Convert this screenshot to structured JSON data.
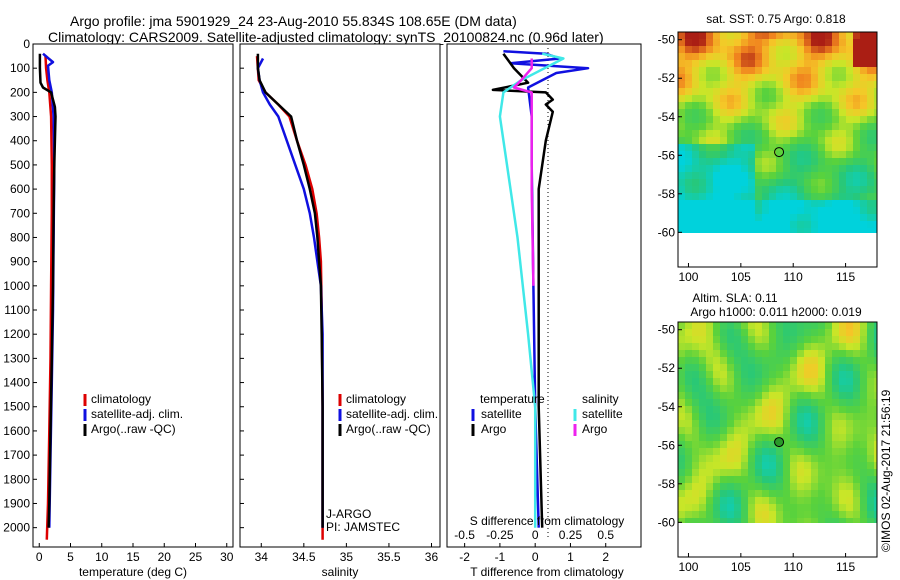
{
  "header": {
    "line1": "Argo profile: jma 5901929_24 23-Aug-2010 55.834S 108.65E (DM data)",
    "line2": "Climatology: CARS2009. Satellite-adjusted climatology: synTS_20100824.nc (0.96d later)"
  },
  "side_text": "©IMOS 02-Aug-2017 21:56:19",
  "colors": {
    "red": "#dd0000",
    "blue": "#1010e0",
    "black": "#000000",
    "cyan": "#40e8e8",
    "magenta": "#ee22ee"
  },
  "chart_data": [
    {
      "type": "line",
      "panel": "temperature",
      "xlabel": "temperature (deg C)",
      "ylabel": "",
      "xlim": [
        -1,
        31
      ],
      "ylim": [
        2080,
        0
      ],
      "xticks": [
        0,
        5,
        10,
        15,
        20,
        25,
        30
      ],
      "yticks": [
        0,
        100,
        200,
        300,
        400,
        500,
        600,
        700,
        800,
        900,
        1000,
        1100,
        1200,
        1300,
        1400,
        1500,
        1600,
        1700,
        1800,
        1900,
        2000
      ],
      "legend": [
        "climatology",
        "satellite-adj. clim.",
        "Argo(..raw -QC)"
      ],
      "series": [
        {
          "name": "climatology",
          "color": "#dd0000",
          "points": [
            [
              1.0,
              50
            ],
            [
              1.1,
              100
            ],
            [
              1.3,
              150
            ],
            [
              1.6,
              200
            ],
            [
              1.9,
              300
            ],
            [
              2.0,
              500
            ],
            [
              2.0,
              700
            ],
            [
              1.9,
              1000
            ],
            [
              1.8,
              1300
            ],
            [
              1.6,
              1600
            ],
            [
              1.4,
              1900
            ],
            [
              1.2,
              2050
            ]
          ]
        },
        {
          "name": "satellite-adj. clim.",
          "color": "#1010e0",
          "points": [
            [
              0.6,
              40
            ],
            [
              1.5,
              60
            ],
            [
              2.2,
              75
            ],
            [
              1.4,
              90
            ],
            [
              1.6,
              150
            ],
            [
              2.0,
              200
            ],
            [
              2.3,
              300
            ],
            [
              2.4,
              500
            ],
            [
              2.3,
              800
            ],
            [
              2.2,
              1100
            ],
            [
              2.0,
              1400
            ],
            [
              1.8,
              1700
            ],
            [
              1.6,
              2000
            ]
          ]
        },
        {
          "name": "Argo(..raw -QC)",
          "color": "#000000",
          "points": [
            [
              0.1,
              40
            ],
            [
              0.1,
              100
            ],
            [
              0.2,
              160
            ],
            [
              0.6,
              180
            ],
            [
              1.9,
              200
            ],
            [
              2.5,
              260
            ],
            [
              2.6,
              300
            ],
            [
              2.4,
              500
            ],
            [
              2.3,
              700
            ],
            [
              2.2,
              1000
            ],
            [
              2.0,
              1300
            ],
            [
              1.8,
              1600
            ],
            [
              1.6,
              1900
            ],
            [
              1.5,
              2000
            ]
          ]
        }
      ]
    },
    {
      "type": "line",
      "panel": "salinity",
      "xlabel": "salinity",
      "xlim": [
        33.75,
        36.1
      ],
      "ylim": [
        2080,
        0
      ],
      "xticks": [
        34,
        34.5,
        35,
        35.5,
        36
      ],
      "yticks": [
        0,
        100,
        200,
        300,
        400,
        500,
        600,
        700,
        800,
        900,
        1000,
        1100,
        1200,
        1300,
        1400,
        1500,
        1600,
        1700,
        1800,
        1900,
        2000
      ],
      "legend": [
        "climatology",
        "satellite-adj. clim.",
        "Argo(..raw -QC)"
      ],
      "annotations": [
        "J-ARGO",
        "PI: JAMSTEC"
      ],
      "series": [
        {
          "name": "climatology",
          "color": "#dd0000",
          "points": [
            [
              33.95,
              50
            ],
            [
              33.97,
              150
            ],
            [
              34.05,
              200
            ],
            [
              34.2,
              250
            ],
            [
              34.33,
              300
            ],
            [
              34.42,
              400
            ],
            [
              34.52,
              500
            ],
            [
              34.6,
              600
            ],
            [
              34.65,
              700
            ],
            [
              34.68,
              800
            ],
            [
              34.7,
              900
            ],
            [
              34.71,
              1100
            ],
            [
              34.72,
              1500
            ],
            [
              34.72,
              2050
            ]
          ]
        },
        {
          "name": "satellite-adj. clim.",
          "color": "#1010e0",
          "points": [
            [
              34.02,
              60
            ],
            [
              33.96,
              100
            ],
            [
              33.98,
              150
            ],
            [
              34.02,
              200
            ],
            [
              34.1,
              250
            ],
            [
              34.2,
              300
            ],
            [
              34.3,
              400
            ],
            [
              34.4,
              500
            ],
            [
              34.5,
              600
            ],
            [
              34.57,
              700
            ],
            [
              34.62,
              800
            ],
            [
              34.66,
              900
            ],
            [
              34.7,
              1000
            ],
            [
              34.72,
              1200
            ],
            [
              34.72,
              1500
            ],
            [
              34.72,
              1800
            ],
            [
              34.72,
              2000
            ]
          ]
        },
        {
          "name": "Argo(..raw -QC)",
          "color": "#000000",
          "points": [
            [
              33.96,
              40
            ],
            [
              33.96,
              100
            ],
            [
              33.98,
              150
            ],
            [
              34.05,
              200
            ],
            [
              34.2,
              250
            ],
            [
              34.35,
              300
            ],
            [
              34.42,
              400
            ],
            [
              34.5,
              500
            ],
            [
              34.57,
              600
            ],
            [
              34.63,
              700
            ],
            [
              34.66,
              800
            ],
            [
              34.68,
              900
            ],
            [
              34.7,
              1000
            ],
            [
              34.71,
              1200
            ],
            [
              34.72,
              1500
            ],
            [
              34.72,
              1800
            ],
            [
              34.72,
              2000
            ]
          ]
        }
      ]
    },
    {
      "type": "line",
      "panel": "difference",
      "xlabel": "T difference from climatology",
      "xlabel_top": "S difference from climatology",
      "xlim": [
        -2.5,
        3.0
      ],
      "ylim": [
        2080,
        0
      ],
      "xticks": [
        -2,
        -1,
        0,
        1,
        2
      ],
      "xticks_top": [
        -0.5,
        -0.25,
        0,
        0.25,
        0.5
      ],
      "yticks": [
        0,
        100,
        200,
        300,
        400,
        500,
        600,
        700,
        800,
        900,
        1000,
        1100,
        1200,
        1300,
        1400,
        1500,
        1600,
        1700,
        1800,
        1900,
        2000
      ],
      "legend_titles": [
        "temperature",
        "salinity"
      ],
      "legend": [
        "satellite",
        "Argo",
        "satellite",
        "Argo"
      ],
      "series": [
        {
          "name": "satellite",
          "group": "temperature",
          "color": "#1010e0",
          "points": [
            [
              -0.9,
              30
            ],
            [
              0.3,
              40
            ],
            [
              0.7,
              60
            ],
            [
              -0.7,
              80
            ],
            [
              1.5,
              100
            ],
            [
              0.6,
              120
            ],
            [
              -0.2,
              180
            ],
            [
              -0.1,
              300
            ],
            [
              -0.1,
              500
            ],
            [
              -0.05,
              1000
            ],
            [
              0.0,
              1500
            ],
            [
              0.1,
              2000
            ]
          ]
        },
        {
          "name": "Argo",
          "group": "temperature",
          "color": "#000000",
          "points": [
            [
              -0.9,
              40
            ],
            [
              -0.6,
              100
            ],
            [
              -0.2,
              160
            ],
            [
              -1.2,
              190
            ],
            [
              0.3,
              200
            ],
            [
              0.5,
              230
            ],
            [
              0.3,
              250
            ],
            [
              0.5,
              280
            ],
            [
              0.3,
              400
            ],
            [
              0.1,
              600
            ],
            [
              0.1,
              1000
            ],
            [
              0.1,
              1500
            ],
            [
              0.2,
              2000
            ]
          ]
        },
        {
          "name": "satellite",
          "group": "salinity",
          "color": "#40e8e8",
          "points": [
            [
              0.2,
              40
            ],
            [
              0.8,
              60
            ],
            [
              -0.4,
              150
            ],
            [
              -0.9,
              200
            ],
            [
              -1.0,
              300
            ],
            [
              -0.8,
              500
            ],
            [
              -0.5,
              800
            ],
            [
              -0.2,
              1200
            ],
            [
              0.0,
              1500
            ],
            [
              0.0,
              2000
            ]
          ]
        },
        {
          "name": "Argo",
          "group": "salinity",
          "color": "#ee22ee",
          "points": [
            [
              -0.1,
              60
            ],
            [
              -0.1,
              100
            ],
            [
              -0.4,
              150
            ],
            [
              -0.6,
              180
            ],
            [
              -0.1,
              200
            ],
            [
              -0.1,
              300
            ],
            [
              -0.1,
              400
            ],
            [
              -0.1,
              600
            ],
            [
              -0.05,
              1000
            ]
          ]
        }
      ]
    },
    {
      "type": "heatmap",
      "panel": "map-sst",
      "title": "sat. SST: 0.75 Argo: 0.818",
      "xlim": [
        99,
        118
      ],
      "ylim": [
        -61.8,
        -49.6
      ],
      "xticks": [
        100,
        105,
        110,
        115
      ],
      "yticks": [
        -50,
        -52,
        -54,
        -56,
        -58,
        -60
      ],
      "marker": [
        108.65,
        -55.834
      ]
    },
    {
      "type": "heatmap",
      "panel": "map-sla",
      "title": "Altim. SLA: 0.11",
      "subtitle": "Argo h1000: 0.011 h2000: 0.019",
      "xlim": [
        99,
        118
      ],
      "ylim": [
        -61.8,
        -49.6
      ],
      "xticks": [
        100,
        105,
        110,
        115
      ],
      "yticks": [
        -50,
        -52,
        -54,
        -56,
        -58,
        -60
      ],
      "marker": [
        108.65,
        -55.834
      ]
    }
  ]
}
